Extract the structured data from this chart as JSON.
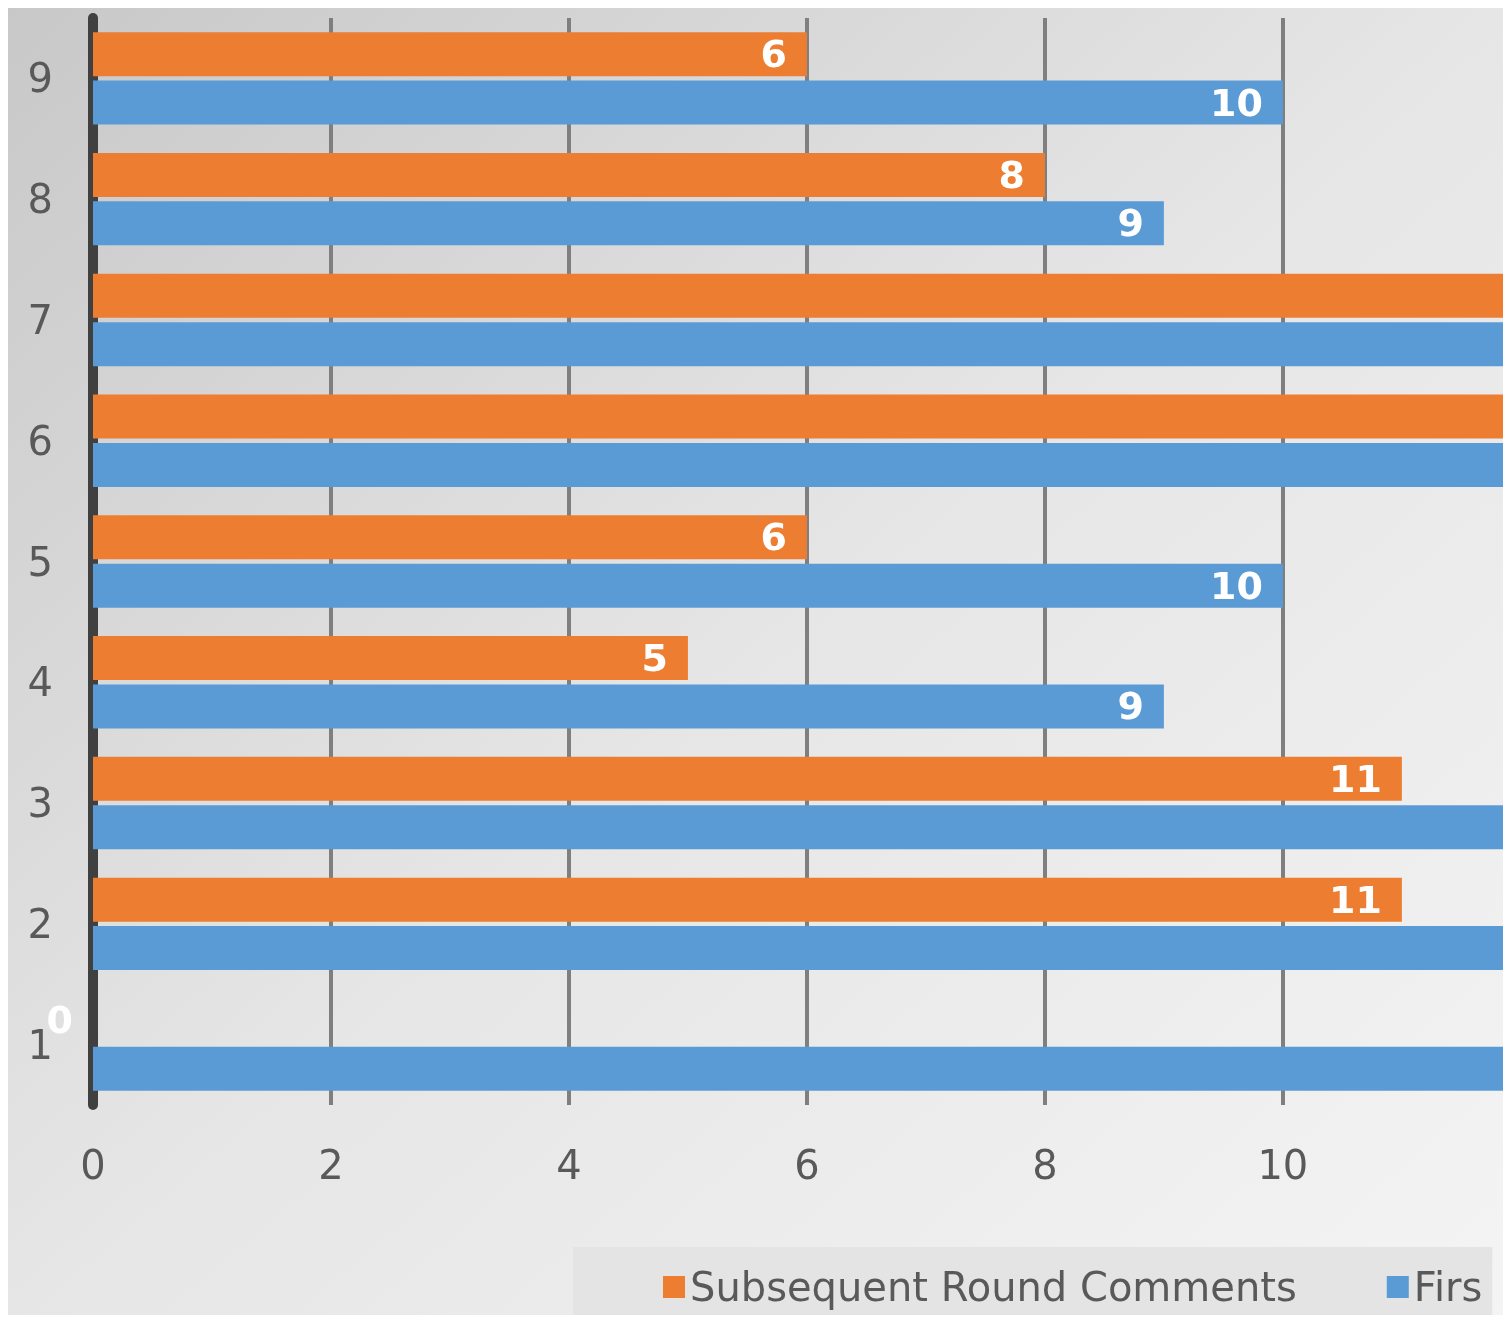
{
  "chart_data": {
    "type": "bar",
    "orientation": "horizontal",
    "categories": [
      "9",
      "8",
      "7",
      "6",
      "5",
      "4",
      "3",
      "2",
      "1"
    ],
    "series": [
      {
        "name": "Subsequent Round Comments",
        "color": "#ed7d31",
        "values": [
          6,
          8,
          11.85,
          11.85,
          6,
          5,
          11,
          11,
          0
        ],
        "value_labels": [
          "6",
          "8",
          null,
          null,
          "6",
          "5",
          "11",
          "11",
          "0"
        ]
      },
      {
        "name": "Firs",
        "color": "#5b9bd5",
        "values": [
          10,
          9,
          11.85,
          11.85,
          10,
          9,
          11.85,
          11.85,
          11.85
        ],
        "value_labels": [
          "10",
          "9",
          null,
          null,
          "10",
          "9",
          null,
          null,
          null
        ]
      }
    ],
    "xlim": [
      0,
      11.85
    ],
    "xticks": [
      0,
      2,
      4,
      6,
      8,
      10
    ],
    "grid": "x",
    "legend": "bottom"
  }
}
